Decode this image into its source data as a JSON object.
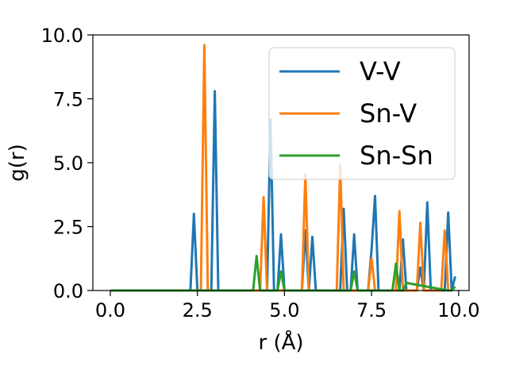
{
  "chart_data": {
    "type": "line",
    "title": "",
    "xlabel": "r (Å)",
    "ylabel": "g(r)",
    "xlim": [
      -0.5,
      10.3
    ],
    "ylim": [
      0.0,
      10.0
    ],
    "xticks": [
      0.0,
      2.5,
      5.0,
      7.5,
      10.0
    ],
    "xtick_labels": [
      "0.0",
      "2.5",
      "5.0",
      "7.5",
      "10.0"
    ],
    "yticks": [
      0.0,
      2.5,
      5.0,
      7.5,
      10.0
    ],
    "ytick_labels": [
      "0.0",
      "2.5",
      "5.0",
      "7.5",
      "10.0"
    ],
    "grid": false,
    "legend_position": "top-right",
    "series": [
      {
        "name": "V-V",
        "color": "#1f77b4",
        "x": [
          0.0,
          2.3,
          2.4,
          2.5,
          2.9,
          3.0,
          3.1,
          4.5,
          4.6,
          4.7,
          4.8,
          4.9,
          5.0,
          5.5,
          5.6,
          5.7,
          5.8,
          5.9,
          6.6,
          6.7,
          6.8,
          6.9,
          7.0,
          7.1,
          7.4,
          7.5,
          7.6,
          7.7,
          8.3,
          8.4,
          8.5,
          8.8,
          8.9,
          9.0,
          9.1,
          9.2,
          9.6,
          9.7,
          9.8,
          9.9
        ],
        "y": [
          0.0,
          0.0,
          3.0,
          0.0,
          0.0,
          7.8,
          0.0,
          0.0,
          6.7,
          0.0,
          0.0,
          2.2,
          0.0,
          0.0,
          2.35,
          0.0,
          2.1,
          0.0,
          0.0,
          3.2,
          0.0,
          0.0,
          2.2,
          0.0,
          0.0,
          1.6,
          3.7,
          0.0,
          0.0,
          2.0,
          0.0,
          0.0,
          0.9,
          0.0,
          3.45,
          0.0,
          0.0,
          3.05,
          0.0,
          0.55
        ]
      },
      {
        "name": "Sn-V",
        "color": "#ff7f0e",
        "x": [
          0.0,
          2.6,
          2.7,
          2.8,
          4.3,
          4.4,
          4.5,
          5.5,
          5.6,
          5.7,
          6.5,
          6.6,
          6.7,
          7.4,
          7.5,
          7.6,
          8.2,
          8.3,
          8.4,
          8.8,
          8.9,
          9.0,
          9.5,
          9.6,
          9.7
        ],
        "y": [
          0.0,
          0.0,
          9.6,
          0.0,
          0.0,
          3.65,
          0.0,
          0.0,
          4.55,
          0.0,
          0.0,
          4.9,
          0.0,
          0.0,
          1.25,
          0.0,
          0.0,
          3.1,
          0.0,
          0.0,
          2.65,
          0.0,
          0.0,
          2.35,
          0.0
        ]
      },
      {
        "name": "Sn-Sn",
        "color": "#2ca02c",
        "x": [
          0.0,
          4.1,
          4.2,
          4.3,
          4.8,
          4.9,
          5.0,
          6.9,
          7.0,
          7.1,
          8.1,
          8.2,
          8.3,
          8.4,
          8.5,
          9.7,
          9.8,
          9.9
        ],
        "y": [
          0.0,
          0.0,
          1.35,
          0.0,
          0.0,
          0.75,
          0.0,
          0.0,
          0.75,
          0.0,
          0.0,
          1.05,
          0.0,
          0.0,
          0.3,
          0.0,
          0.0,
          0.15
        ]
      }
    ]
  }
}
